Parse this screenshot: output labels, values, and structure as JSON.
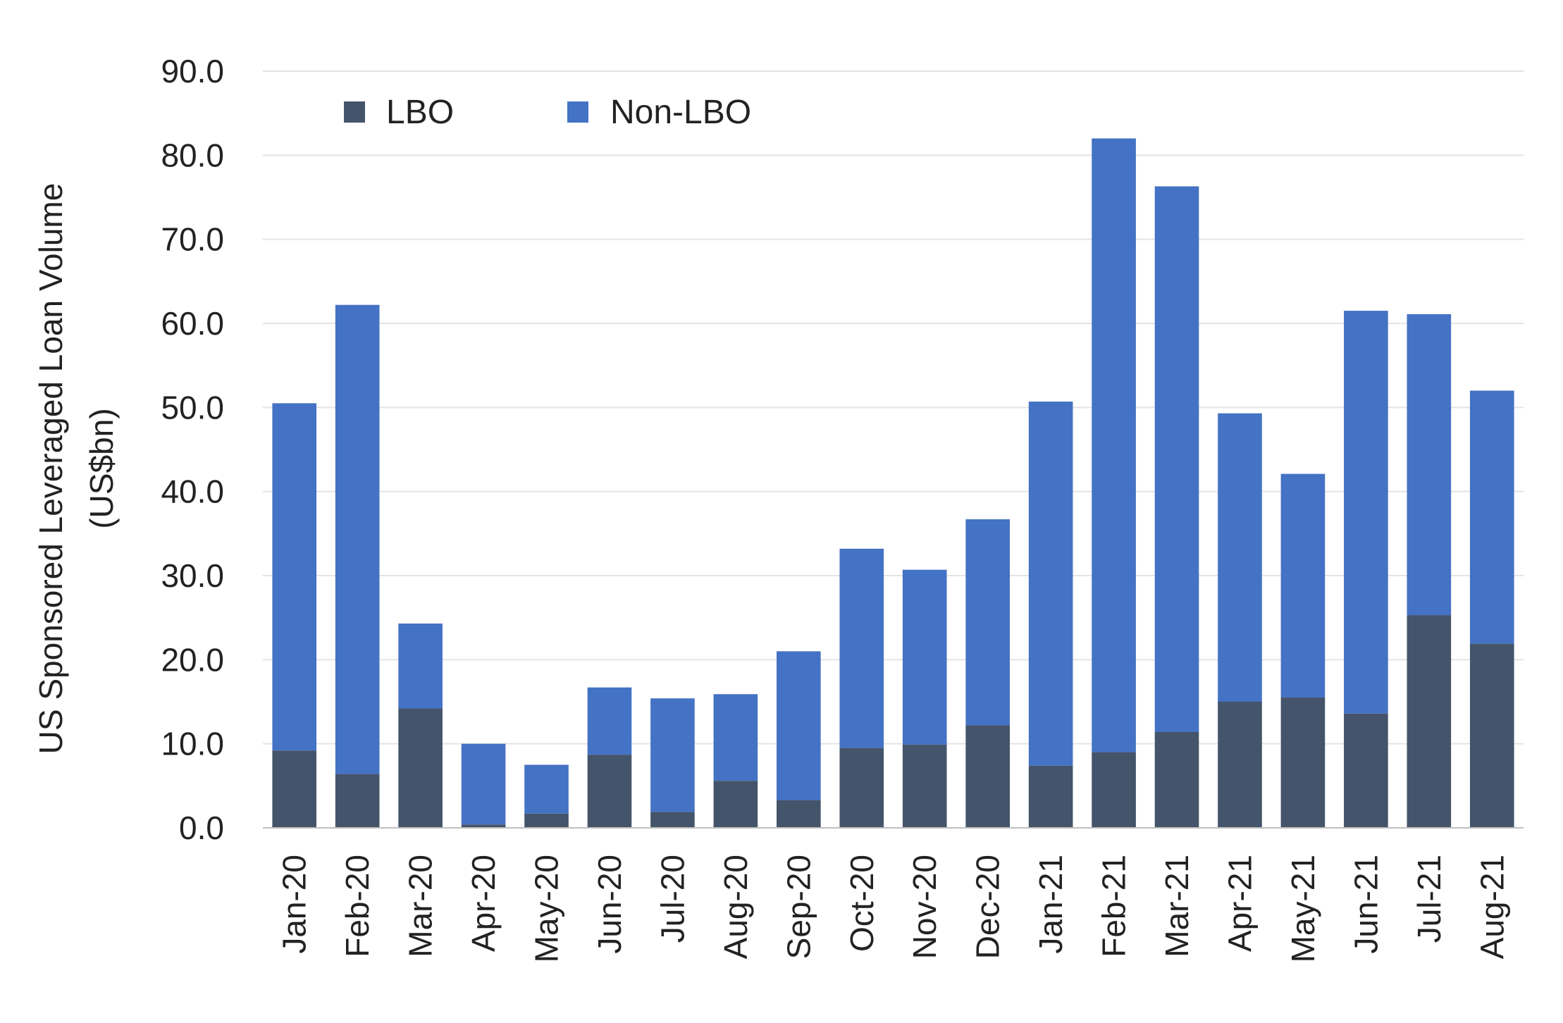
{
  "chart_data": {
    "type": "bar",
    "stacked": true,
    "categories": [
      "Jan-20",
      "Feb-20",
      "Mar-20",
      "Apr-20",
      "May-20",
      "Jun-20",
      "Jul-20",
      "Aug-20",
      "Sep-20",
      "Oct-20",
      "Nov-20",
      "Dec-20",
      "Jan-21",
      "Feb-21",
      "Mar-21",
      "Apr-21",
      "May-21",
      "Jun-21",
      "Jul-21",
      "Aug-21"
    ],
    "series": [
      {
        "name": "LBO",
        "color": "#44546a",
        "values": [
          9.2,
          6.4,
          14.2,
          0.4,
          1.7,
          8.7,
          1.9,
          5.6,
          3.3,
          9.5,
          9.9,
          12.2,
          7.4,
          9.0,
          11.4,
          15.0,
          15.5,
          13.6,
          25.3,
          21.9
        ]
      },
      {
        "name": "Non-LBO",
        "color": "#4472c4",
        "values": [
          41.3,
          55.8,
          10.1,
          9.6,
          5.8,
          8.0,
          13.5,
          10.3,
          17.7,
          23.7,
          20.8,
          24.5,
          43.3,
          73.0,
          64.9,
          34.3,
          26.6,
          47.9,
          35.8,
          30.1
        ]
      }
    ],
    "ylabel_line1": "US  Sponsored Leveraged Loan Volume",
    "ylabel_line2": "(US$bn)",
    "ylim": [
      0,
      90
    ],
    "yticks": [
      "0.0",
      "10.0",
      "20.0",
      "30.0",
      "40.0",
      "50.0",
      "60.0",
      "70.0",
      "80.0",
      "90.0"
    ],
    "grid": true,
    "legend_position": "top-left"
  }
}
